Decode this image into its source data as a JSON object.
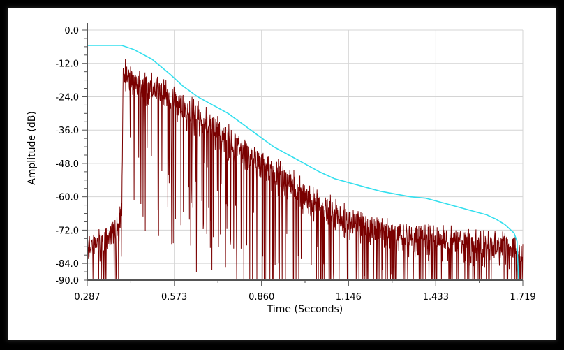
{
  "chart_data": {
    "type": "line",
    "title": "",
    "xlabel": "Time (Seconds)",
    "ylabel": "Amplitude (dB)",
    "xlim": [
      0.287,
      1.719
    ],
    "ylim": [
      -90.0,
      0.0
    ],
    "x_ticks": [
      "0.287",
      "0.573",
      "0.860",
      "1.146",
      "1.433",
      "1.719"
    ],
    "y_ticks": [
      "0.0",
      "-12.0",
      "-24.0",
      "-36.0",
      "-48.0",
      "-60.0",
      "-72.0",
      "-84.0",
      "-90.0"
    ],
    "x_tick_values": [
      0.287,
      0.573,
      0.86,
      1.146,
      1.433,
      1.719
    ],
    "y_tick_values": [
      0.0,
      -12.0,
      -24.0,
      -36.0,
      -48.0,
      -60.0,
      -72.0,
      -84.0,
      -90.0
    ],
    "grid": true,
    "series": [
      {
        "color": "#33dfee",
        "x": [
          0.287,
          0.4,
          0.44,
          0.5,
          0.56,
          0.6,
          0.65,
          0.7,
          0.75,
          0.8,
          0.85,
          0.9,
          0.95,
          1.0,
          1.05,
          1.1,
          1.15,
          1.2,
          1.25,
          1.3,
          1.35,
          1.4,
          1.45,
          1.5,
          1.55,
          1.6,
          1.63,
          1.66,
          1.69,
          1.7,
          1.705
        ],
        "y": [
          -5.5,
          -5.5,
          -7.0,
          -10.5,
          -16.0,
          -20.0,
          -24.0,
          -27.0,
          -30.0,
          -34.0,
          -38.0,
          -42.0,
          -45.0,
          -48.0,
          -51.0,
          -53.5,
          -55.0,
          -56.5,
          -58.0,
          -59.0,
          -60.0,
          -60.5,
          -62.0,
          -63.5,
          -65.0,
          -66.5,
          -68.0,
          -70.0,
          -73.0,
          -76.0,
          -90.0
        ]
      },
      {
        "color": "#7a0000",
        "envelope_x": [
          0.287,
          0.34,
          0.38,
          0.4,
          0.405,
          0.43,
          0.45,
          0.5,
          0.55,
          0.6,
          0.65,
          0.7,
          0.75,
          0.8,
          0.85,
          0.9,
          0.95,
          1.0,
          1.05,
          1.1,
          1.15,
          1.2,
          1.25,
          1.3,
          1.35,
          1.4,
          1.45,
          1.5,
          1.55,
          1.6,
          1.65,
          1.7,
          1.719
        ],
        "envelope_y": [
          -72.0,
          -70.0,
          -66.0,
          -61.0,
          -8.0,
          -13.0,
          -14.0,
          -15.0,
          -18.0,
          -22.0,
          -25.0,
          -29.0,
          -33.0,
          -37.0,
          -41.0,
          -45.0,
          -49.0,
          -53.0,
          -57.0,
          -60.0,
          -63.0,
          -65.0,
          -66.0,
          -67.0,
          -68.0,
          -69.0,
          -70.0,
          -70.0,
          -71.0,
          -72.0,
          -72.0,
          -73.0,
          -74.0
        ]
      }
    ]
  }
}
